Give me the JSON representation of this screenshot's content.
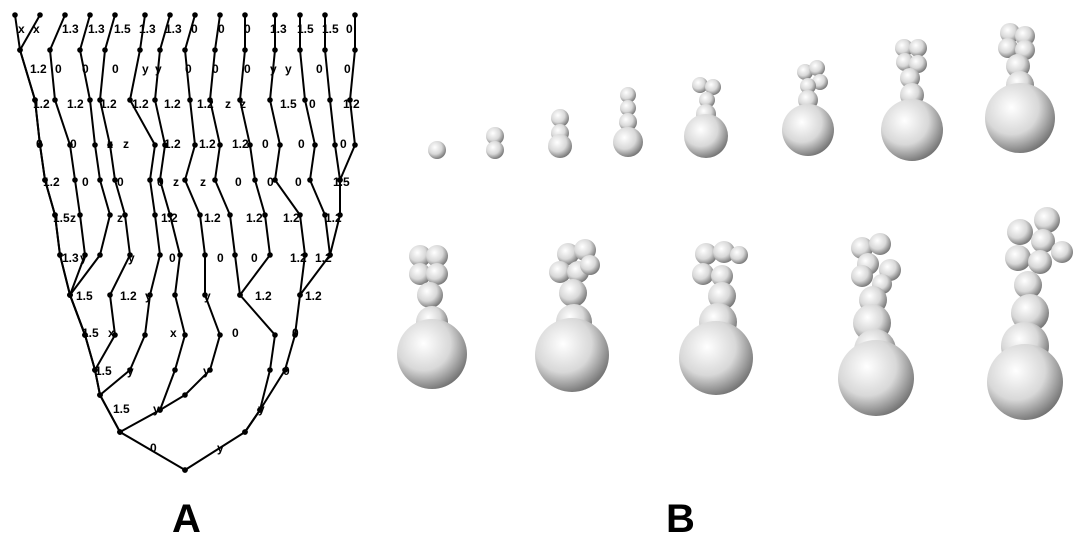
{
  "figure": {
    "panel_labels": [
      "A",
      "B"
    ],
    "tree_edge_labels": [
      "x",
      "x",
      "1.3",
      "1.3",
      "1.5",
      "1.3",
      "1.3",
      "0",
      "0",
      "0",
      "1.3",
      "1.5",
      "1.5",
      "0",
      "1.2",
      "0",
      "0",
      "0",
      "y",
      "y",
      "0",
      "0",
      "0",
      "y",
      "y",
      "0",
      "0",
      "1.2",
      "1.2",
      "1.2",
      "1.2",
      "1.2",
      "1.2",
      "z",
      "z",
      "1.5",
      "0",
      "1.2",
      "0",
      "0",
      "z",
      "z",
      "1.2",
      "1.2",
      "1.2",
      "0",
      "0",
      "0",
      "1.2",
      "0",
      "0",
      "0",
      "z",
      "z",
      "0",
      "0",
      "0",
      "1.5",
      "1.5",
      "z",
      "z",
      "1.2",
      "1.2",
      "1.2",
      "1.2",
      "1.2",
      "1.3",
      "y",
      "y",
      "0",
      "0",
      "0",
      "1.2",
      "1.2",
      "1.5",
      "1.2",
      "y",
      "y",
      "1.2",
      "1.2",
      "1.5",
      "x",
      "x",
      "0",
      "0",
      "1.5",
      "y",
      "y",
      "0",
      "1.5",
      "y",
      "y",
      "0",
      "y",
      "y"
    ]
  }
}
